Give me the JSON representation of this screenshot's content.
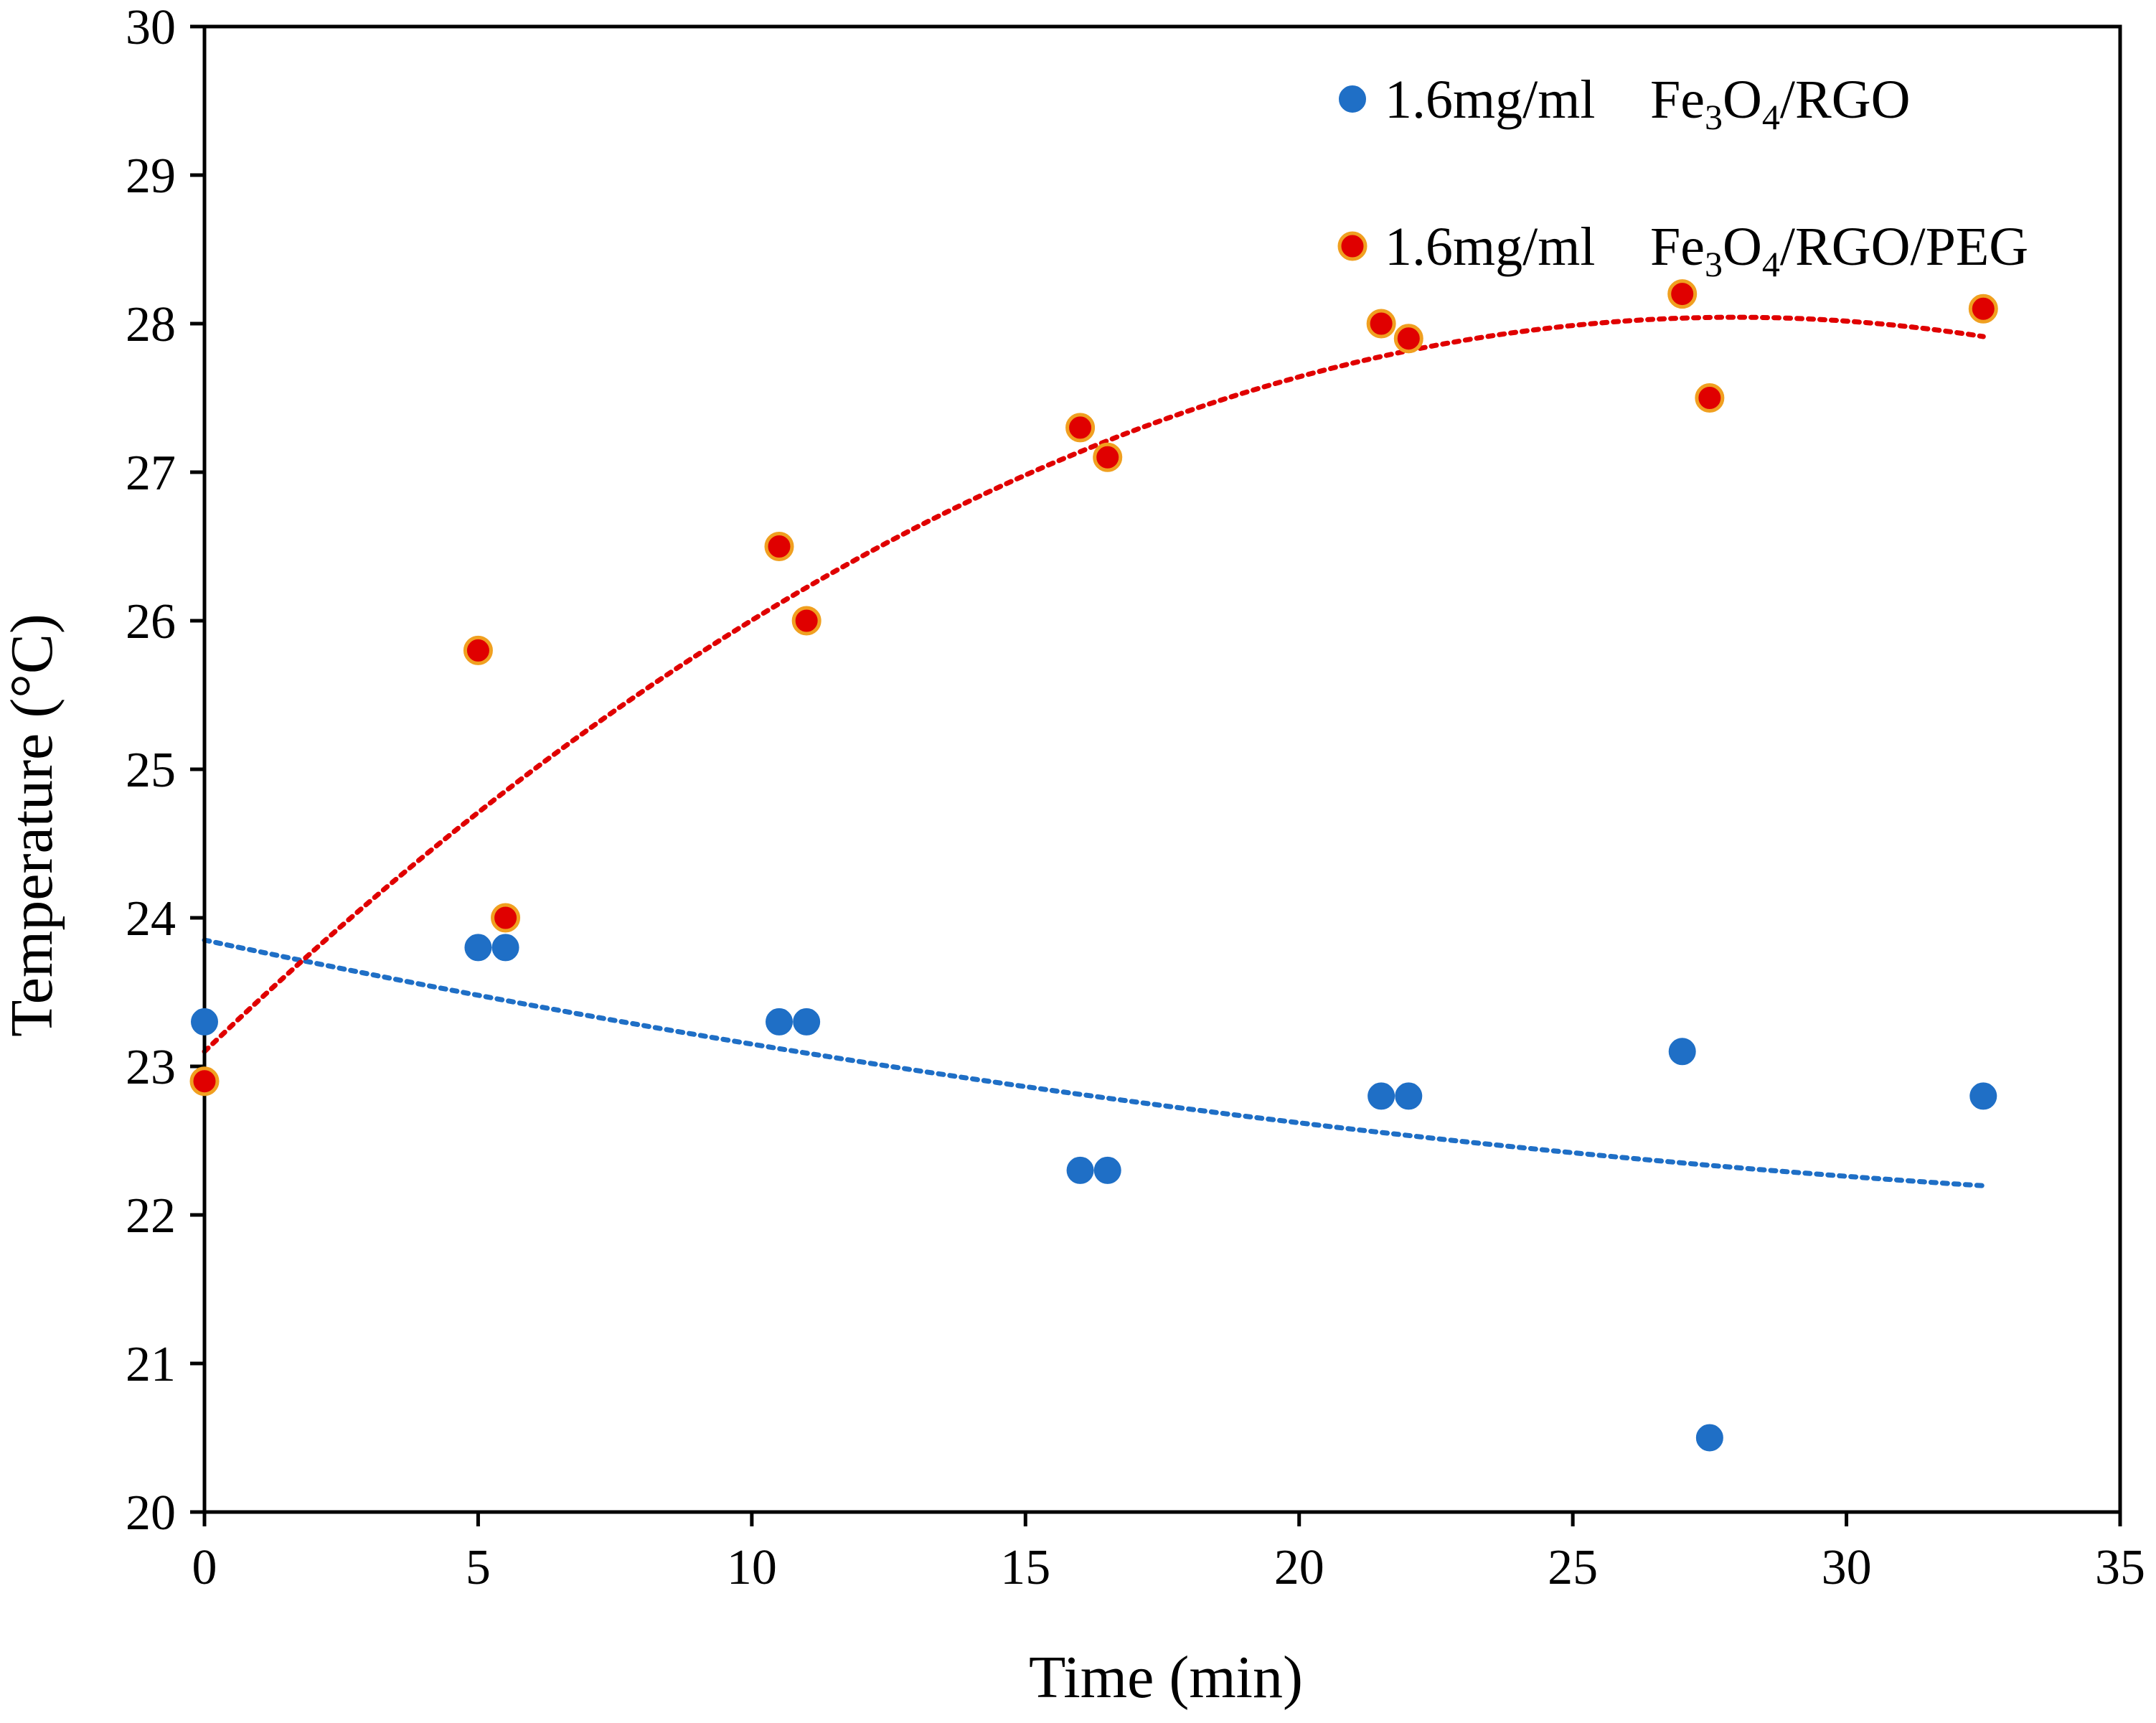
{
  "chart_data": {
    "type": "scatter",
    "xlabel": "Time (min)",
    "ylabel": "Temperature (°C)",
    "xlim": [
      0,
      35
    ],
    "ylim": [
      20,
      30
    ],
    "xticks": [
      "0",
      "5",
      "10",
      "15",
      "20",
      "25",
      "30",
      "35"
    ],
    "yticks": [
      "20",
      "21",
      "22",
      "23",
      "24",
      "25",
      "26",
      "27",
      "28",
      "29",
      "30"
    ],
    "grid": false,
    "legend_position": "top-right",
    "series": [
      {
        "name": "1.6mg/ml Fe3O4/RGO",
        "legend_prefix": "1.6mg/ml",
        "legend_parts": [
          "Fe",
          "3",
          "O",
          "4",
          "/RGO"
        ],
        "color": "#1f6fc6",
        "edge_color": "#1f6fc6",
        "x": [
          0,
          5,
          5.5,
          10.5,
          11,
          16,
          16.5,
          21.5,
          22,
          27,
          27.5,
          32.5
        ],
        "y": [
          23.3,
          23.8,
          23.8,
          23.3,
          23.3,
          22.3,
          22.3,
          22.8,
          22.8,
          23.1,
          20.5,
          22.8
        ],
        "trendline": {
          "type": "polynomial",
          "degree": 2,
          "coefficients": [
            23.85,
            -0.0785,
            0.00085
          ],
          "x_range": [
            0,
            32.5
          ]
        }
      },
      {
        "name": "1.6mg/ml Fe3O4/RGO/PEG",
        "legend_prefix": "1.6mg/ml",
        "legend_parts": [
          "Fe",
          "3",
          "O",
          "4",
          "/RGO/PEG"
        ],
        "color": "#e00000",
        "edge_color": "#f0a020",
        "x": [
          0,
          5,
          5.5,
          10.5,
          11,
          16,
          16.5,
          21.5,
          22,
          27,
          27.5,
          32.5
        ],
        "y": [
          22.9,
          25.8,
          24.0,
          26.5,
          26.0,
          27.3,
          27.1,
          28.0,
          27.9,
          28.2,
          27.5,
          28.1
        ],
        "trendline": {
          "type": "polynomial",
          "degree": 2,
          "coefficients": [
            23.1,
            0.3535,
            -0.00632
          ],
          "x_range": [
            0,
            32.5
          ]
        }
      }
    ]
  }
}
